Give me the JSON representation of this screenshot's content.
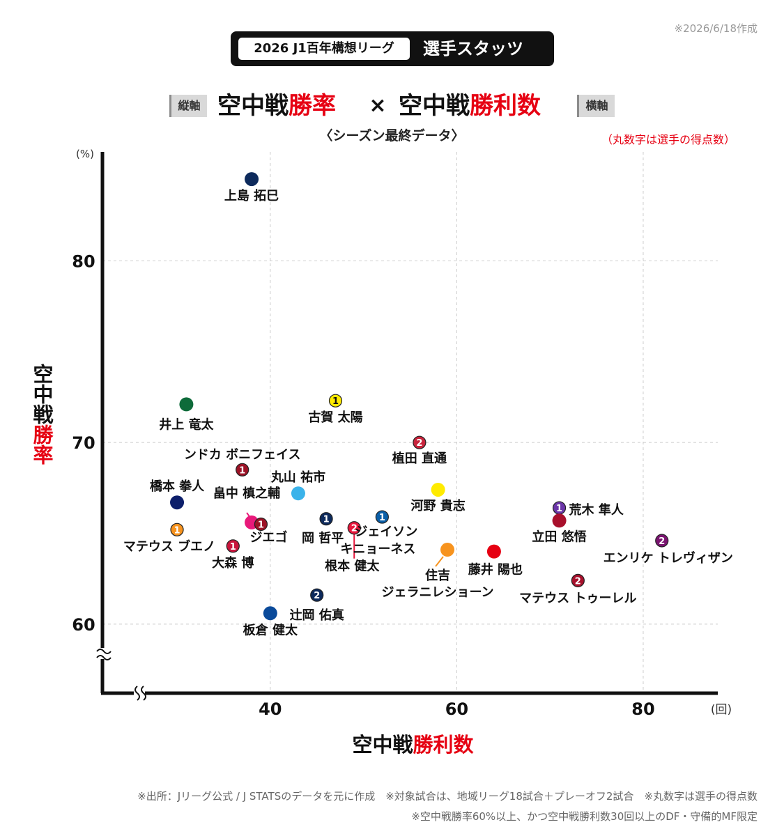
{
  "date_note": "※2026/6/18作成",
  "title": {
    "league": "2026 J1百年構想リーグ",
    "main": "選手スタッツ"
  },
  "heading": {
    "vertical_tag": "縦軸",
    "horizontal_tag": "横軸",
    "left_prefix": "空中戦",
    "left_emphasis": "勝率",
    "times": "×",
    "right_prefix": "空中戦",
    "right_emphasis": "勝利数"
  },
  "subheading": "〈シーズン最終データ〉",
  "circle_note": "（丸数字は選手の得点数）",
  "footnotes": [
    "※出所：Jリーグ公式 / J STATSのデータを元に作成　※対象試合は、地域リーグ18試合＋プレーオフ2試合　※丸数字は選手の得点数",
    "※空中戦勝率60%以上、かつ空中戦勝利数30回以上のDF・守備的MF限定"
  ],
  "colors": {
    "accent": "#e60012",
    "text": "#111111",
    "grid": "#cccccc"
  },
  "chart_data": {
    "type": "scatter",
    "xlabel_prefix": "空中戦",
    "xlabel_emphasis": "勝利数",
    "ylabel_prefix": "空中戦",
    "ylabel_emphasis": "勝率",
    "x_unit": "(回)",
    "y_unit": "(%)",
    "xlim": [
      22,
      88
    ],
    "ylim": [
      56.2,
      86
    ],
    "x_ticks": [
      40,
      60,
      80
    ],
    "y_ticks": [
      60,
      70,
      80
    ],
    "axis_break": true,
    "grid": true,
    "points": [
      {
        "name": "上島 拓巳",
        "x": 38,
        "y": 84.5,
        "goals": null,
        "color": "#0d2a5c"
      },
      {
        "name": "井上 竜太",
        "x": 31,
        "y": 72.1,
        "goals": null,
        "color": "#0e6b3a"
      },
      {
        "name": "古賀 太陽",
        "x": 47,
        "y": 72.3,
        "goals": 1,
        "color": "#ffeb00"
      },
      {
        "name": "植田 直通",
        "x": 56,
        "y": 70.0,
        "goals": 2,
        "color": "#c8243c"
      },
      {
        "name": "ンドカ ボニフェイス",
        "x": 37,
        "y": 68.5,
        "goals": 1,
        "color": "#9c1226"
      },
      {
        "name": "丸山 祐市",
        "x": 43,
        "y": 67.2,
        "goals": null,
        "color": "#3bb3ea"
      },
      {
        "name": "河野 貴志",
        "x": 58,
        "y": 67.4,
        "goals": null,
        "color": "#ffeb00"
      },
      {
        "name": "橋本 拳人",
        "x": 30,
        "y": 66.7,
        "goals": null,
        "color": "#0d1f6b"
      },
      {
        "name": "荒木 隼人",
        "x": 71,
        "y": 66.4,
        "goals": 1,
        "color": "#6a35a8"
      },
      {
        "name": "畠中 槙之輔",
        "x": 38,
        "y": 65.6,
        "goals": null,
        "color": "#e8197a"
      },
      {
        "name": "ジエゴ",
        "x": 39,
        "y": 65.5,
        "goals": 1,
        "color": "#9c1226"
      },
      {
        "name": "岡 哲平",
        "x": 46,
        "y": 65.8,
        "goals": 1,
        "color": "#0d2a5c"
      },
      {
        "name": "ジェイソン キニョーネス",
        "x": 52,
        "y": 65.9,
        "goals": 1,
        "color": "#0a5fa8"
      },
      {
        "name": "根本 健太",
        "x": 49,
        "y": 65.3,
        "goals": 2,
        "color": "#e8173c"
      },
      {
        "name": "立田 悠悟",
        "x": 71,
        "y": 65.7,
        "goals": null,
        "color": "#a8102c"
      },
      {
        "name": "マテウス ブエノ",
        "x": 30,
        "y": 65.2,
        "goals": 1,
        "color": "#f7931e"
      },
      {
        "name": "大森 博",
        "x": 36,
        "y": 64.3,
        "goals": 1,
        "color": "#c8143c"
      },
      {
        "name": "エンリケ トレヴィザン",
        "x": 82,
        "y": 64.6,
        "goals": 2,
        "color": "#7a1470"
      },
      {
        "name": "住吉 ジェラニレショーン",
        "x": 59,
        "y": 64.1,
        "goals": null,
        "color": "#f7931e"
      },
      {
        "name": "藤井 陽也",
        "x": 64,
        "y": 64.0,
        "goals": null,
        "color": "#e60012"
      },
      {
        "name": "マテウス トゥーレル",
        "x": 73,
        "y": 62.4,
        "goals": 2,
        "color": "#a8102c"
      },
      {
        "name": "辻岡 佑真",
        "x": 45,
        "y": 61.6,
        "goals": 2,
        "color": "#0d2a5c"
      },
      {
        "name": "板倉 健太",
        "x": 40,
        "y": 60.6,
        "goals": null,
        "color": "#0a4a9a"
      }
    ]
  }
}
